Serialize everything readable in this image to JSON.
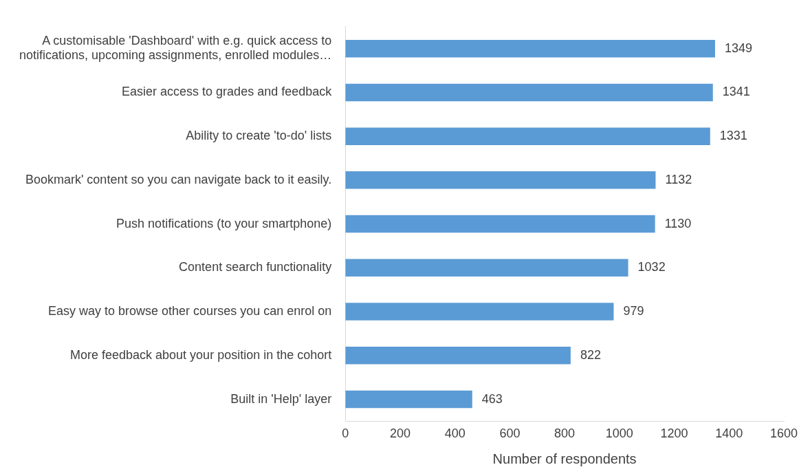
{
  "chart_data": {
    "type": "bar",
    "orientation": "horizontal",
    "xlabel": "Number of respondents",
    "categories": [
      "A customisable 'Dashboard' with e.g. quick access to notifications, upcoming assignments, enrolled modules…",
      "Easier access to grades and feedback",
      "Ability to create 'to-do' lists",
      "Bookmark' content so you can navigate back to it easily.",
      "Push notifications (to your smartphone)",
      "Content search functionality",
      "Easy way to browse other courses you can enrol on",
      "More feedback about your position in the cohort",
      "Built in 'Help' layer"
    ],
    "values": [
      1349,
      1341,
      1331,
      1132,
      1130,
      1032,
      979,
      822,
      463
    ],
    "color": "#5b9bd5",
    "xlim": [
      0,
      1600
    ],
    "xticks": [
      0,
      200,
      400,
      600,
      800,
      1000,
      1200,
      1400,
      1600
    ],
    "grid": false,
    "legend": false,
    "data_labels": true
  }
}
